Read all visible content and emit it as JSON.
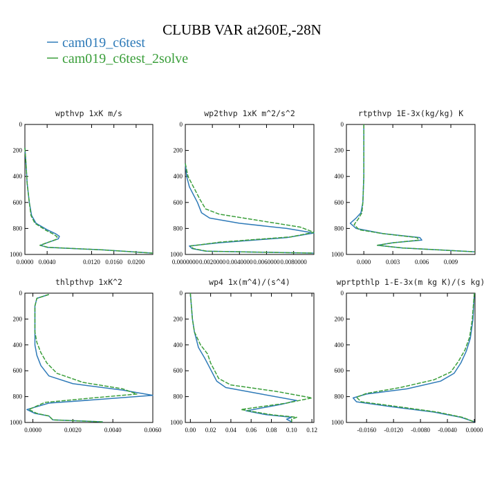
{
  "figure": {
    "title": "CLUBB VAR at260E,-28N",
    "legend": [
      {
        "label": "cam019_c6test",
        "color": "#2e7ab8"
      },
      {
        "label": "cam019_c6test_2solve",
        "color": "#3a9e3a"
      }
    ]
  },
  "chart_data": [
    {
      "type": "line",
      "title": "wpthvp   1xK m/s",
      "xlabel": "",
      "ylabel": "",
      "xlim": [
        0.0,
        0.023
      ],
      "ylim": [
        1000,
        0
      ],
      "xticks": [
        "0.0000",
        "0.0040",
        "0.0120",
        "0.0160",
        "0.0200"
      ],
      "xtick_values": [
        0.0,
        0.004,
        0.012,
        0.016,
        0.02
      ],
      "yticks": [
        0,
        200,
        400,
        600,
        800,
        1000
      ],
      "series": [
        {
          "name": "cam019_c6test",
          "color": "#2e7ab8",
          "dash": false,
          "x": [
            0.0,
            0.0002,
            0.0004,
            0.0008,
            0.0012,
            0.002,
            0.004,
            0.0055,
            0.0062,
            0.006,
            0.004,
            0.0028,
            0.004,
            0.014,
            0.023
          ],
          "y": [
            180,
            300,
            450,
            600,
            700,
            760,
            810,
            840,
            860,
            880,
            910,
            930,
            945,
            965,
            990
          ]
        },
        {
          "name": "cam019_c6test_2solve",
          "color": "#3a9e3a",
          "dash": true,
          "x": [
            0.0,
            0.0002,
            0.0004,
            0.0008,
            0.0011,
            0.0018,
            0.0038,
            0.0052,
            0.0058,
            0.0056,
            0.0038,
            0.0027,
            0.0042,
            0.014,
            0.023
          ],
          "y": [
            180,
            300,
            450,
            600,
            700,
            760,
            815,
            845,
            865,
            885,
            912,
            930,
            945,
            965,
            990
          ]
        }
      ]
    },
    {
      "type": "line",
      "title": "wp2thvp   1xK m^2/s^2",
      "xlabel": "",
      "ylabel": "",
      "xlim": [
        0.0,
        0.0095
      ],
      "ylim": [
        1000,
        0
      ],
      "xticks": [
        "0.0000000",
        "0.0020000",
        "0.0040000",
        "0.0060000",
        "0.0080000"
      ],
      "xtick_values": [
        0.0,
        0.002,
        0.004,
        0.006,
        0.008
      ],
      "yticks": [
        0,
        200,
        400,
        600,
        800,
        1000
      ],
      "series": [
        {
          "name": "cam019_c6test",
          "color": "#2e7ab8",
          "dash": false,
          "x": [
            0.0,
            0.0001,
            0.0003,
            0.0006,
            0.0009,
            0.0012,
            0.0018,
            0.004,
            0.0075,
            0.0095,
            0.0075,
            0.0025,
            0.0003,
            0.0005,
            0.0015,
            0.0095
          ],
          "y": [
            300,
            400,
            480,
            540,
            600,
            680,
            720,
            760,
            800,
            835,
            870,
            910,
            935,
            955,
            975,
            990
          ]
        },
        {
          "name": "cam019_c6test_2solve",
          "color": "#3a9e3a",
          "dash": true,
          "x": [
            0.0,
            0.0002,
            0.0005,
            0.0008,
            0.0011,
            0.0015,
            0.0025,
            0.0055,
            0.0085,
            0.0095,
            0.0078,
            0.0026,
            0.0004,
            0.0006,
            0.0016,
            0.0095
          ],
          "y": [
            300,
            400,
            460,
            520,
            580,
            650,
            690,
            740,
            790,
            830,
            865,
            905,
            935,
            955,
            975,
            990
          ]
        }
      ]
    },
    {
      "type": "line",
      "title": "rtpthvp   1E-3x(kg/kg) K",
      "xlabel": "",
      "ylabel": "",
      "xlim": [
        -0.0018,
        0.0115
      ],
      "ylim": [
        1000,
        0
      ],
      "xticks": [
        "0.000",
        "0.003",
        "0.006",
        "0.009"
      ],
      "xtick_values": [
        0.0,
        0.003,
        0.006,
        0.009
      ],
      "yticks": [
        0,
        200,
        400,
        600,
        800,
        1000
      ],
      "series": [
        {
          "name": "cam019_c6test",
          "color": "#2e7ab8",
          "dash": false,
          "x": [
            0.0,
            0.0,
            -0.0001,
            -0.0003,
            -0.0008,
            -0.0014,
            -0.0008,
            0.002,
            0.0058,
            0.006,
            0.003,
            0.0014,
            0.004,
            0.0115
          ],
          "y": [
            0,
            400,
            600,
            680,
            720,
            760,
            800,
            840,
            870,
            890,
            910,
            930,
            950,
            980
          ]
        },
        {
          "name": "cam019_c6test_2solve",
          "color": "#3a9e3a",
          "dash": true,
          "x": [
            0.0,
            0.0,
            -0.0001,
            -0.0002,
            -0.0006,
            -0.001,
            -0.0005,
            0.002,
            0.0055,
            0.0057,
            0.003,
            0.0014,
            0.004,
            0.0115
          ],
          "y": [
            0,
            400,
            600,
            680,
            730,
            770,
            810,
            840,
            870,
            890,
            910,
            930,
            950,
            980
          ]
        }
      ]
    },
    {
      "type": "line",
      "title": "thlpthvp   1xK^2",
      "xlabel": "",
      "ylabel": "",
      "xlim": [
        -0.0004,
        0.006
      ],
      "ylim": [
        1000,
        0
      ],
      "xticks": [
        "0.0000",
        "0.0020",
        "0.0040",
        "0.0060"
      ],
      "xtick_values": [
        0.0,
        0.002,
        0.004,
        0.006
      ],
      "yticks": [
        0,
        200,
        400,
        600,
        800,
        1000
      ],
      "series": [
        {
          "name": "cam019_c6test",
          "color": "#2e7ab8",
          "dash": false,
          "x": [
            0.0008,
            0.0002,
            0.0001,
            0.0001,
            0.0001,
            0.0002,
            0.0004,
            0.0008,
            0.002,
            0.0045,
            0.006,
            0.0035,
            0.0008,
            -0.0003,
            0.0001,
            0.0008,
            0.001,
            0.0035
          ],
          "y": [
            10,
            40,
            100,
            300,
            400,
            480,
            560,
            640,
            700,
            750,
            790,
            820,
            850,
            900,
            930,
            950,
            980,
            995
          ]
        },
        {
          "name": "cam019_c6test_2solve",
          "color": "#3a9e3a",
          "dash": true,
          "x": [
            0.0008,
            0.0002,
            0.0001,
            0.0001,
            0.0002,
            0.0004,
            0.0007,
            0.0012,
            0.0025,
            0.0045,
            0.0052,
            0.003,
            0.0006,
            -0.0002,
            0.0002,
            0.0008,
            0.001,
            0.0035
          ],
          "y": [
            10,
            40,
            100,
            300,
            380,
            460,
            540,
            620,
            690,
            740,
            780,
            810,
            845,
            900,
            930,
            950,
            980,
            995
          ]
        }
      ]
    },
    {
      "type": "line",
      "title": "wp4   1x(m^4)/(s^4)",
      "xlabel": "",
      "ylabel": "",
      "xlim": [
        -0.005,
        0.122
      ],
      "ylim": [
        1000,
        0
      ],
      "xticks": [
        "0.00",
        "0.02",
        "0.04",
        "0.06",
        "0.08",
        "0.10",
        "0.12"
      ],
      "xtick_values": [
        0.0,
        0.02,
        0.04,
        0.06,
        0.08,
        0.1,
        0.12
      ],
      "yticks": [
        0,
        200,
        400,
        600,
        800,
        1000
      ],
      "series": [
        {
          "name": "cam019_c6test",
          "color": "#2e7ab8",
          "dash": false,
          "x": [
            0.0,
            0.001,
            0.002,
            0.004,
            0.008,
            0.014,
            0.018,
            0.022,
            0.026,
            0.035,
            0.07,
            0.105,
            0.09,
            0.055,
            0.075,
            0.1,
            0.095,
            0.1
          ],
          "y": [
            0,
            100,
            200,
            300,
            420,
            500,
            560,
            620,
            680,
            730,
            780,
            830,
            860,
            910,
            940,
            960,
            975,
            995
          ]
        },
        {
          "name": "cam019_c6test_2solve",
          "color": "#3a9e3a",
          "dash": true,
          "x": [
            0.0,
            0.001,
            0.002,
            0.004,
            0.01,
            0.017,
            0.02,
            0.024,
            0.028,
            0.04,
            0.085,
            0.12,
            0.095,
            0.05,
            0.08,
            0.105,
            0.1,
            0.1
          ],
          "y": [
            0,
            100,
            200,
            300,
            400,
            470,
            540,
            600,
            660,
            710,
            760,
            810,
            850,
            900,
            940,
            960,
            975,
            995
          ]
        }
      ]
    },
    {
      "type": "line",
      "title": "wprtpthlp   1-E-3x(m kg K)/(s kg)",
      "xlabel": "",
      "ylabel": "",
      "xlim": [
        -0.019,
        0.0001
      ],
      "ylim": [
        1000,
        0
      ],
      "xticks": [
        "-0.0160",
        "-0.0120",
        "-0.0080",
        "-0.0040",
        "0.0000"
      ],
      "xtick_values": [
        -0.016,
        -0.012,
        -0.008,
        -0.004,
        0.0
      ],
      "yticks": [
        0,
        200,
        400,
        600,
        800,
        1000
      ],
      "series": [
        {
          "name": "cam019_c6test",
          "color": "#2e7ab8",
          "dash": false,
          "x": [
            0.0,
            -0.0002,
            -0.0006,
            -0.0012,
            -0.002,
            -0.003,
            -0.005,
            -0.01,
            -0.016,
            -0.018,
            -0.0175,
            -0.012,
            -0.006,
            -0.002,
            0.0
          ],
          "y": [
            0,
            200,
            350,
            450,
            540,
            620,
            680,
            740,
            780,
            810,
            840,
            880,
            920,
            960,
            995
          ]
        },
        {
          "name": "cam019_c6test_2solve",
          "color": "#3a9e3a",
          "dash": true,
          "x": [
            0.0,
            -0.0003,
            -0.0007,
            -0.0014,
            -0.0024,
            -0.0035,
            -0.006,
            -0.011,
            -0.016,
            -0.0175,
            -0.0168,
            -0.011,
            -0.0055,
            -0.0018,
            0.0
          ],
          "y": [
            0,
            200,
            340,
            440,
            530,
            610,
            670,
            730,
            775,
            805,
            840,
            880,
            920,
            960,
            995
          ]
        }
      ]
    }
  ]
}
